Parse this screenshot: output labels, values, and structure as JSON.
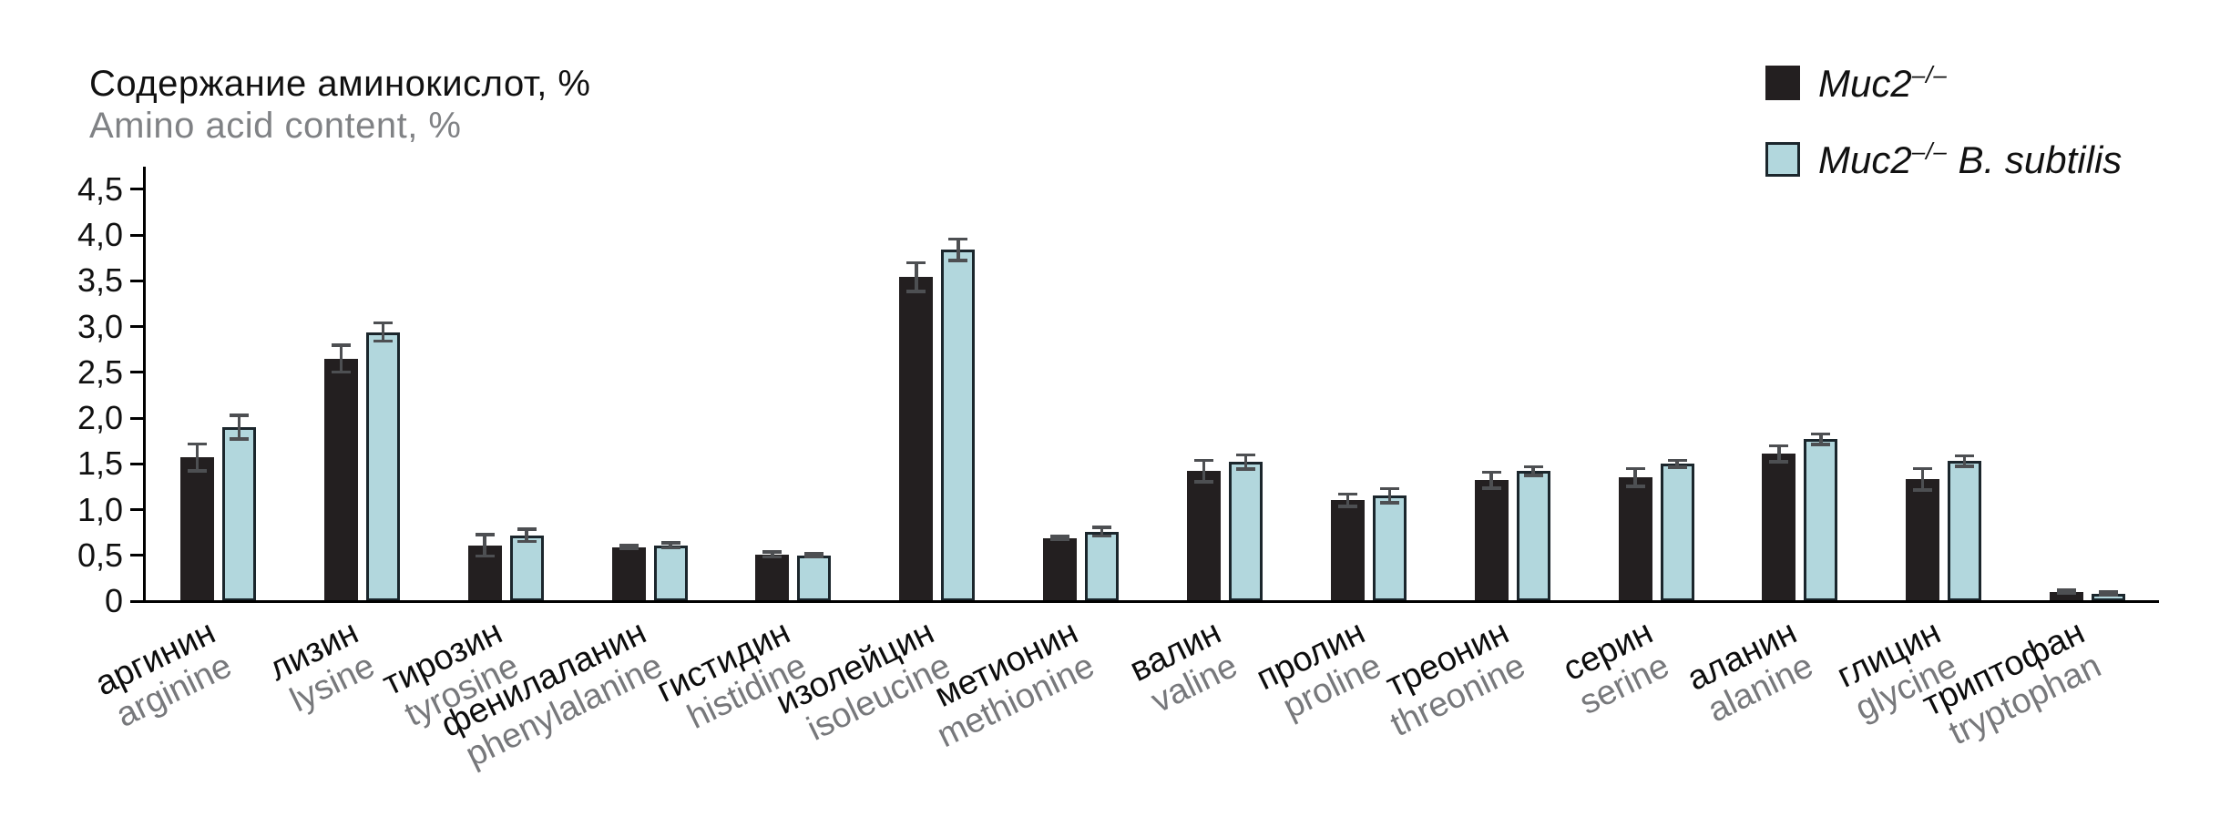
{
  "title": {
    "ru": "Содержание аминокислот, %",
    "en": "Amino acid content, %"
  },
  "legend": {
    "position": "top-right",
    "items": [
      {
        "base": "Muc2",
        "sup": "–/–",
        "rest": "",
        "swatch": "#231f20"
      },
      {
        "base": "Muc2",
        "sup": "–/–",
        "rest": " B. subtilis",
        "swatch": "#b2d7dd"
      }
    ]
  },
  "colors": {
    "bar_black": "#231f20",
    "bar_blue": "#b2d7dd",
    "blue_border": "#1b262c",
    "error_bar": "#4d4f52",
    "axis": "#000000",
    "secondary_text": "#77787b",
    "gray_title": "#808285"
  },
  "chart_data": {
    "type": "bar",
    "title": "Содержание аминокислот, % / Amino acid content, %",
    "xlabel": "",
    "ylabel": "Содержание аминокислот, % (Amino acid content, %)",
    "grid": false,
    "legend_position": "top-right",
    "ylim": [
      0,
      4.5
    ],
    "ytick_step": 0.5,
    "yticks": [
      {
        "label": "0",
        "v": 0
      },
      {
        "label": "0,5",
        "v": 0.5
      },
      {
        "label": "1,0",
        "v": 1.0
      },
      {
        "label": "1,5",
        "v": 1.5
      },
      {
        "label": "2,0",
        "v": 2.0
      },
      {
        "label": "2,5",
        "v": 2.5
      },
      {
        "label": "3,0",
        "v": 3.0
      },
      {
        "label": "3,5",
        "v": 3.5
      },
      {
        "label": "4,0",
        "v": 4.0
      },
      {
        "label": "4,5",
        "v": 4.5
      }
    ],
    "categories": [
      {
        "ru": "аргинин",
        "en": "arginine"
      },
      {
        "ru": "лизин",
        "en": "lysine"
      },
      {
        "ru": "тирозин",
        "en": "tyrosine"
      },
      {
        "ru": "фенилаланин",
        "en": "phenylalanine"
      },
      {
        "ru": "гистидин",
        "en": "histidine"
      },
      {
        "ru": "изолейцин",
        "en": "isoleucine"
      },
      {
        "ru": "метионин",
        "en": "methionine"
      },
      {
        "ru": "валин",
        "en": "valine"
      },
      {
        "ru": "пролин",
        "en": "proline"
      },
      {
        "ru": "треонин",
        "en": "threonine"
      },
      {
        "ru": "серин",
        "en": "serine"
      },
      {
        "ru": "аланин",
        "en": "alanine"
      },
      {
        "ru": "глицин",
        "en": "glycine"
      },
      {
        "ru": "триптофан",
        "en": "tryptophan"
      }
    ],
    "series": [
      {
        "name": "Muc2–/–",
        "color": "#231f20",
        "border": null,
        "values": [
          1.57,
          2.65,
          0.61,
          0.59,
          0.51,
          3.54,
          0.69,
          1.42,
          1.1,
          1.32,
          1.35,
          1.61,
          1.33,
          0.1
        ],
        "errors": [
          0.15,
          0.15,
          0.12,
          0.02,
          0.03,
          0.16,
          0.02,
          0.12,
          0.07,
          0.09,
          0.1,
          0.09,
          0.12,
          0.02
        ]
      },
      {
        "name": "Muc2–/– B. subtilis",
        "color": "#b2d7dd",
        "border": "#1b262c",
        "values": [
          1.9,
          2.94,
          0.72,
          0.61,
          0.5,
          3.84,
          0.76,
          1.52,
          1.15,
          1.42,
          1.5,
          1.77,
          1.53,
          0.08
        ],
        "errors": [
          0.13,
          0.1,
          0.07,
          0.03,
          0.02,
          0.12,
          0.05,
          0.08,
          0.08,
          0.05,
          0.04,
          0.06,
          0.06,
          0.02
        ]
      }
    ]
  }
}
